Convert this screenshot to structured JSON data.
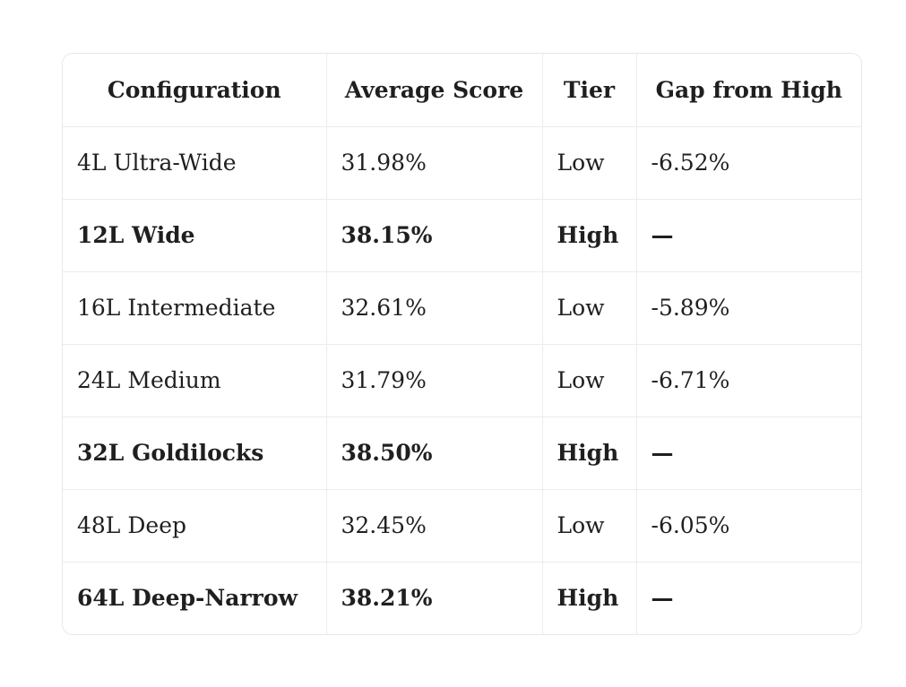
{
  "table": {
    "header": [
      "Configuration",
      "Average Score",
      "Tier",
      "Gap from High"
    ],
    "rows": [
      [
        "4L Ultra-Wide",
        "31.98%",
        "Low",
        "-6.52%"
      ],
      [
        "12L Wide",
        "38.15%",
        "High",
        "—"
      ],
      [
        "16L Intermediate",
        "32.61%",
        "Low",
        "-5.89%"
      ],
      [
        "24L Medium",
        "31.79%",
        "Low",
        "-6.71%"
      ],
      [
        "32L Goldilocks",
        "38.50%",
        "High",
        "—"
      ],
      [
        "48L Deep",
        "32.45%",
        "Low",
        "-6.05%"
      ],
      [
        "64L Deep-Narrow",
        "38.21%",
        "High",
        "—"
      ]
    ]
  }
}
